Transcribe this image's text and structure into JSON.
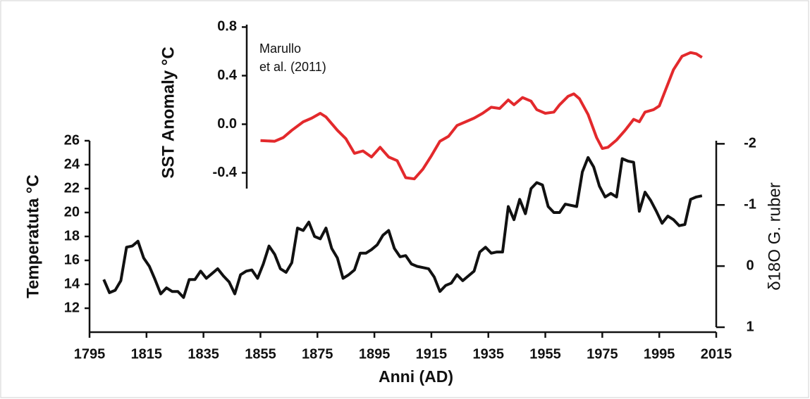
{
  "chart_data": [
    {
      "type": "line",
      "xlabel": "Anni (AD)",
      "ylabel": "Temperatuta °C",
      "y2label": "δ18O G. ruber",
      "xlim": [
        1795,
        2015
      ],
      "xticks": [
        1795,
        1815,
        1835,
        1855,
        1875,
        1895,
        1915,
        1935,
        1955,
        1975,
        1995,
        2015
      ],
      "ylim": [
        10,
        26
      ],
      "yticks": [
        12,
        14,
        16,
        18,
        20,
        22,
        24,
        26
      ],
      "y2lim": [
        1,
        -2.05
      ],
      "y2ticks": [
        -2,
        -1,
        0,
        1
      ],
      "x": [
        1800,
        1802,
        1804,
        1806,
        1808,
        1810,
        1812,
        1814,
        1816,
        1818,
        1820,
        1822,
        1824,
        1826,
        1828,
        1830,
        1832,
        1834,
        1836,
        1838,
        1840,
        1842,
        1844,
        1846,
        1848,
        1850,
        1852,
        1854,
        1856,
        1858,
        1860,
        1862,
        1864,
        1866,
        1868,
        1870,
        1872,
        1874,
        1876,
        1878,
        1880,
        1882,
        1884,
        1886,
        1888,
        1890,
        1892,
        1894,
        1896,
        1898,
        1900,
        1902,
        1904,
        1906,
        1908,
        1910,
        1912,
        1914,
        1916,
        1918,
        1920,
        1922,
        1924,
        1926,
        1928,
        1930,
        1932,
        1934,
        1936,
        1938,
        1940,
        1942,
        1944,
        1946,
        1948,
        1950,
        1952,
        1954,
        1956,
        1958,
        1960,
        1962,
        1964,
        1966,
        1968,
        1970,
        1972,
        1974,
        1976,
        1978,
        1980,
        1982,
        1984,
        1986,
        1988,
        1990,
        1992,
        1994,
        1996,
        1998,
        2000,
        2002,
        2004,
        2006,
        2008,
        2010
      ],
      "series": [
        {
          "color": "#111111",
          "values": [
            14.4,
            13.3,
            13.5,
            14.3,
            17.1,
            17.2,
            17.6,
            16.2,
            15.5,
            14.4,
            13.2,
            13.7,
            13.4,
            13.4,
            12.9,
            14.4,
            14.4,
            15.1,
            14.5,
            14.9,
            15.3,
            14.7,
            14.2,
            13.2,
            14.8,
            15.1,
            15.2,
            14.5,
            15.7,
            17.2,
            16.5,
            15.3,
            15.0,
            15.8,
            18.7,
            18.5,
            19.2,
            18.0,
            17.8,
            18.7,
            17.0,
            16.2,
            14.5,
            14.8,
            15.2,
            16.6,
            16.6,
            16.9,
            17.3,
            18.1,
            18.5,
            17.0,
            16.3,
            16.4,
            15.7,
            15.5,
            15.4,
            15.3,
            14.6,
            13.4,
            13.9,
            14.1,
            14.8,
            14.3,
            14.7,
            15.1,
            16.7,
            17.1,
            16.6,
            16.7,
            16.7,
            20.5,
            19.4,
            21.1,
            19.9,
            22.0,
            22.5,
            22.3,
            20.5,
            20.0,
            20.0,
            20.7,
            20.6,
            20.5,
            23.4,
            24.6,
            23.8,
            22.2,
            21.3,
            21.6,
            21.3,
            24.5,
            24.3,
            24.2,
            20.1,
            21.7,
            21.0,
            20.1,
            19.1,
            19.7,
            19.4,
            18.9,
            19.0,
            21.1,
            21.3,
            21.4
          ]
        }
      ]
    },
    {
      "type": "line",
      "ylabel": "SST Anomaly °C",
      "annotation": [
        "Marullo",
        "et al. (2011)"
      ],
      "ylim": [
        -0.53,
        0.82
      ],
      "yticks": [
        {
          "value": 0.8,
          "label": "0.8"
        },
        {
          "value": 0.4,
          "label": "0.4"
        },
        {
          "value": 0,
          "label": "0.0"
        },
        {
          "value": -0.4,
          "label": "-0.4"
        }
      ],
      "x": [
        1855,
        1860,
        1863,
        1866,
        1870,
        1873,
        1876,
        1878,
        1882,
        1885,
        1888,
        1891,
        1894,
        1897,
        1900,
        1903,
        1906,
        1909,
        1912,
        1915,
        1918,
        1921,
        1924,
        1927,
        1930,
        1933,
        1936,
        1939,
        1942,
        1944,
        1947,
        1950,
        1952,
        1955,
        1958,
        1960,
        1963,
        1965,
        1967,
        1970,
        1973,
        1975,
        1977,
        1980,
        1983,
        1986,
        1988,
        1990,
        1993,
        1995,
        1998,
        2000,
        2003,
        2006,
        2008,
        2010
      ],
      "series": [
        {
          "color": "#e3292c",
          "values": [
            -0.135,
            -0.14,
            -0.11,
            -0.05,
            0.02,
            0.05,
            0.09,
            0.06,
            -0.05,
            -0.12,
            -0.24,
            -0.22,
            -0.27,
            -0.19,
            -0.27,
            -0.3,
            -0.44,
            -0.45,
            -0.37,
            -0.26,
            -0.14,
            -0.1,
            -0.01,
            0.02,
            0.05,
            0.09,
            0.14,
            0.13,
            0.2,
            0.16,
            0.22,
            0.19,
            0.12,
            0.09,
            0.1,
            0.16,
            0.23,
            0.25,
            0.21,
            0.08,
            -0.11,
            -0.2,
            -0.19,
            -0.13,
            -0.05,
            0.04,
            0.02,
            0.1,
            0.12,
            0.15,
            0.33,
            0.45,
            0.56,
            0.59,
            0.58,
            0.55
          ]
        }
      ]
    }
  ]
}
